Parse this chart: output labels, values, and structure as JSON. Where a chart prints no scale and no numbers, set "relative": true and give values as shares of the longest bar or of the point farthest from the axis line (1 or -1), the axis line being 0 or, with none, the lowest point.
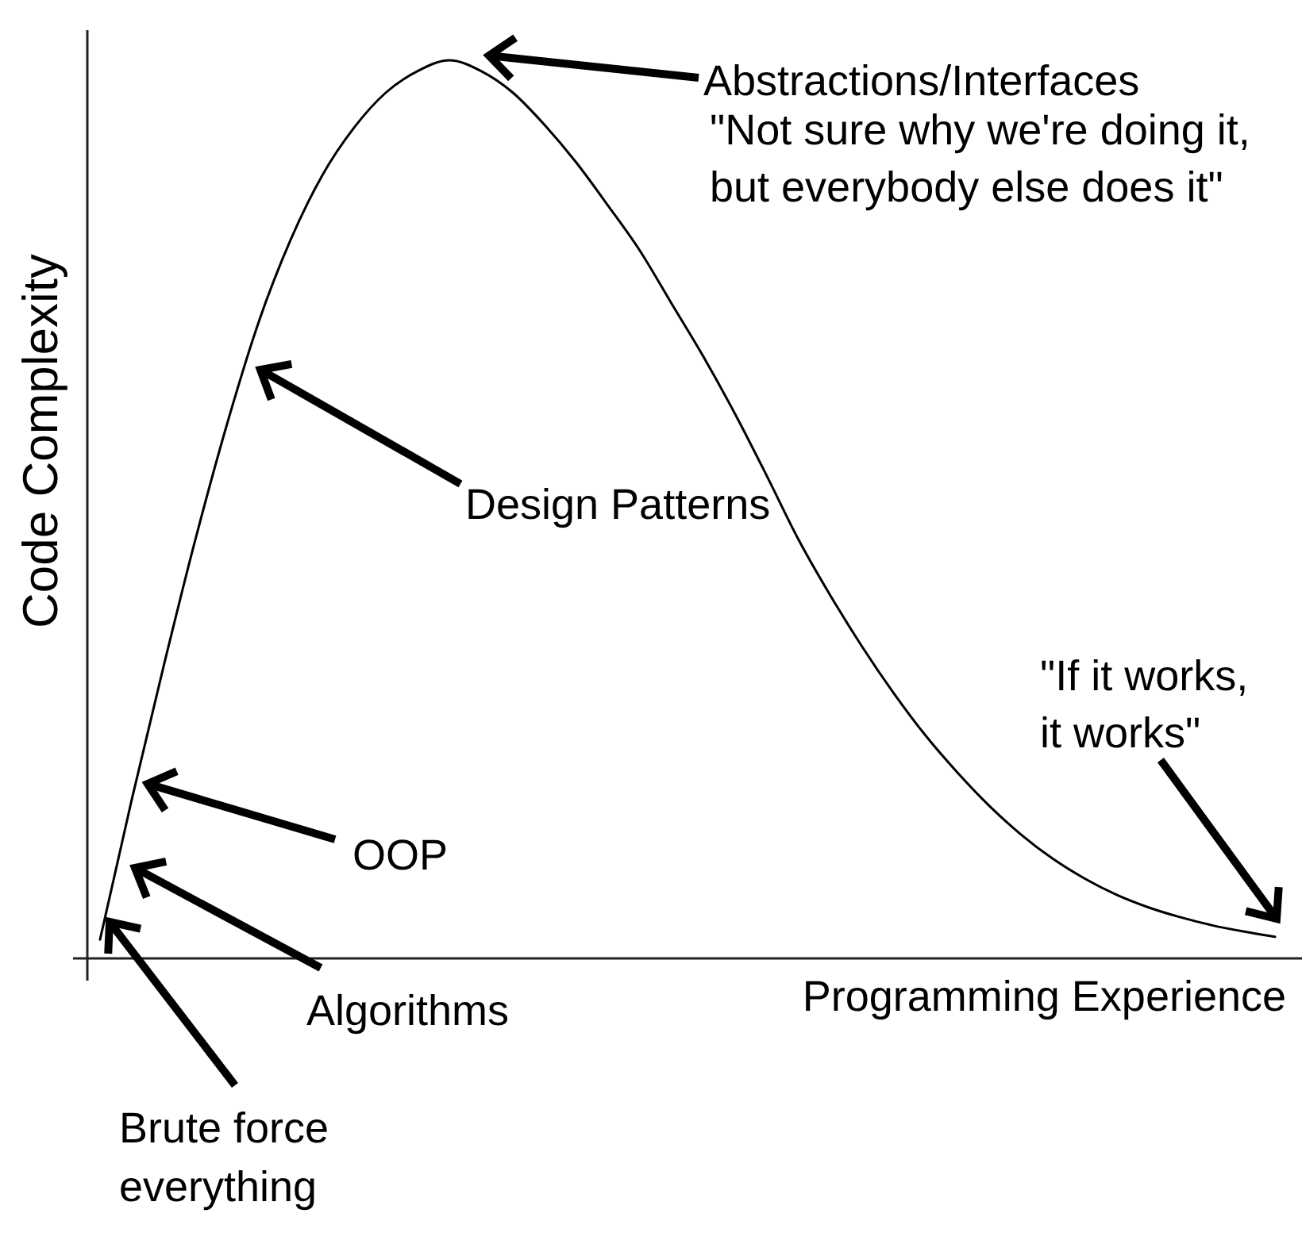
{
  "chart_data": {
    "type": "line",
    "relative": true,
    "xlabel": "Programming Experience",
    "ylabel": "Code Complexity",
    "categories": [
      null,
      null,
      null,
      null,
      null,
      null,
      null,
      null,
      null,
      null,
      null,
      null,
      null,
      null,
      null,
      null,
      null,
      null,
      null,
      null,
      null,
      null,
      null,
      null,
      null,
      null,
      null,
      null,
      null,
      null,
      null,
      null,
      null,
      null,
      null,
      null,
      null,
      null
    ],
    "values": [
      0.021,
      0.177,
      0.325,
      0.466,
      0.595,
      0.709,
      0.8,
      0.872,
      0.925,
      0.964,
      0.988,
      1,
      0.988,
      0.964,
      0.928,
      0.886,
      0.838,
      0.788,
      0.729,
      0.67,
      0.606,
      0.537,
      0.466,
      0.404,
      0.347,
      0.295,
      0.248,
      0.207,
      0.17,
      0.138,
      0.111,
      0.089,
      0.071,
      0.057,
      0.046,
      0.037,
      0.03,
      0.024
    ],
    "color": "#000000",
    "annotations": [
      "Abstractions/Interfaces",
      "\"Not sure why we're doing it, but everybody else does it\"",
      "Design Patterns",
      "\"If it works, it works\"",
      "OOP",
      "Algorithms",
      "Brute force everything"
    ]
  }
}
